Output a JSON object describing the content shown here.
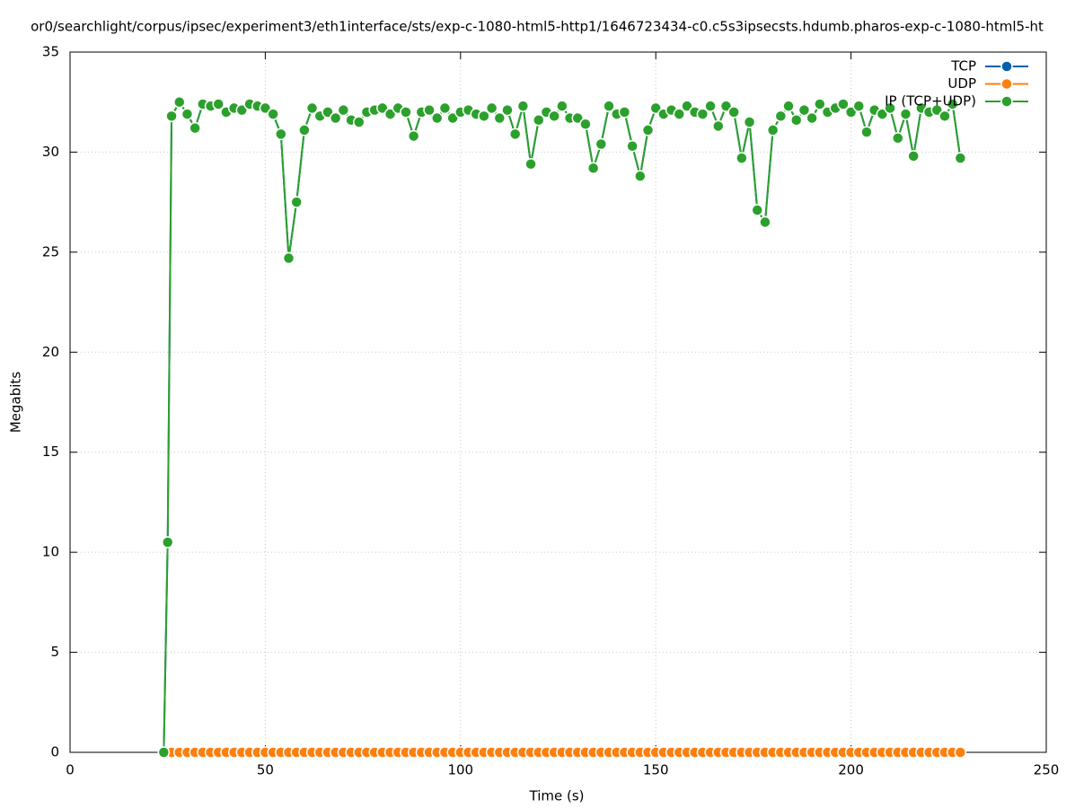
{
  "chart_data": {
    "type": "line",
    "title": "or0/searchlight/corpus/ipsec/experiment3/eth1interface/sts/exp-c-1080-html5-http1/1646723434-c0.c5s3ipsecsts.hdumb.pharos-exp-c-1080-html5-ht",
    "x_label": "Time (s)",
    "y_label": "Megabits",
    "x": [
      24,
      25,
      26,
      28,
      30,
      32,
      34,
      36,
      38,
      40,
      42,
      44,
      46,
      48,
      50,
      52,
      54,
      56,
      58,
      60,
      62,
      64,
      66,
      68,
      70,
      72,
      74,
      76,
      78,
      80,
      82,
      84,
      86,
      88,
      90,
      92,
      94,
      96,
      98,
      100,
      102,
      104,
      106,
      108,
      110,
      112,
      114,
      116,
      118,
      120,
      122,
      124,
      126,
      128,
      130,
      132,
      134,
      136,
      138,
      140,
      142,
      144,
      146,
      148,
      150,
      152,
      154,
      156,
      158,
      160,
      162,
      164,
      166,
      168,
      170,
      172,
      174,
      176,
      178,
      180,
      182,
      184,
      186,
      188,
      190,
      192,
      194,
      196,
      198,
      200,
      202,
      204,
      206,
      208,
      210,
      212,
      214,
      216,
      218,
      220,
      222,
      224,
      226,
      228
    ],
    "series": [
      {
        "name": "TCP",
        "color": "#0060ad",
        "values": [
          0,
          10.5,
          31.8,
          32.5,
          31.9,
          31.2,
          32.4,
          32.3,
          32.4,
          32.0,
          32.2,
          32.1,
          32.4,
          32.3,
          32.2,
          31.9,
          30.9,
          24.7,
          27.5,
          31.1,
          32.2,
          31.8,
          32.0,
          31.7,
          32.1,
          31.6,
          31.5,
          32.0,
          32.1,
          32.2,
          31.9,
          32.2,
          32.0,
          30.8,
          32.0,
          32.1,
          31.7,
          32.2,
          31.7,
          32.0,
          32.1,
          31.9,
          31.8,
          32.2,
          31.7,
          32.1,
          30.9,
          32.3,
          29.4,
          31.6,
          32.0,
          31.8,
          32.3,
          31.7,
          31.7,
          31.4,
          29.2,
          30.4,
          32.3,
          31.9,
          32.0,
          30.3,
          28.8,
          31.1,
          32.2,
          31.9,
          32.1,
          31.9,
          32.3,
          32.0,
          31.9,
          32.3,
          31.3,
          32.3,
          32.0,
          29.7,
          31.5,
          27.1,
          26.5,
          31.1,
          31.8,
          32.3,
          31.6,
          32.1,
          31.7,
          32.4,
          32.0,
          32.2,
          32.4,
          32.0,
          32.3,
          31.0,
          32.1,
          31.9,
          32.2,
          30.7,
          31.9,
          29.8,
          32.2,
          32.0,
          32.1,
          31.8,
          32.4,
          29.7
        ]
      },
      {
        "name": "UDP",
        "color": "#ff7f0e",
        "values": [
          0,
          0,
          0,
          0,
          0,
          0,
          0,
          0,
          0,
          0,
          0,
          0,
          0,
          0,
          0,
          0,
          0,
          0,
          0,
          0,
          0,
          0,
          0,
          0,
          0,
          0,
          0,
          0,
          0,
          0,
          0,
          0,
          0,
          0,
          0,
          0,
          0,
          0,
          0,
          0,
          0,
          0,
          0,
          0,
          0,
          0,
          0,
          0,
          0,
          0,
          0,
          0,
          0,
          0,
          0,
          0,
          0,
          0,
          0,
          0,
          0,
          0,
          0,
          0,
          0,
          0,
          0,
          0,
          0,
          0,
          0,
          0,
          0,
          0,
          0,
          0,
          0,
          0,
          0,
          0,
          0,
          0,
          0,
          0,
          0,
          0,
          0,
          0,
          0,
          0,
          0,
          0,
          0,
          0,
          0,
          0,
          0,
          0,
          0,
          0,
          0,
          0,
          0,
          0
        ]
      },
      {
        "name": "IP (TCP+UDP)",
        "color": "#2ca02c",
        "values": [
          0,
          10.5,
          31.8,
          32.5,
          31.9,
          31.2,
          32.4,
          32.3,
          32.4,
          32.0,
          32.2,
          32.1,
          32.4,
          32.3,
          32.2,
          31.9,
          30.9,
          24.7,
          27.5,
          31.1,
          32.2,
          31.8,
          32.0,
          31.7,
          32.1,
          31.6,
          31.5,
          32.0,
          32.1,
          32.2,
          31.9,
          32.2,
          32.0,
          30.8,
          32.0,
          32.1,
          31.7,
          32.2,
          31.7,
          32.0,
          32.1,
          31.9,
          31.8,
          32.2,
          31.7,
          32.1,
          30.9,
          32.3,
          29.4,
          31.6,
          32.0,
          31.8,
          32.3,
          31.7,
          31.7,
          31.4,
          29.2,
          30.4,
          32.3,
          31.9,
          32.0,
          30.3,
          28.8,
          31.1,
          32.2,
          31.9,
          32.1,
          31.9,
          32.3,
          32.0,
          31.9,
          32.3,
          31.3,
          32.3,
          32.0,
          29.7,
          31.5,
          27.1,
          26.5,
          31.1,
          31.8,
          32.3,
          31.6,
          32.1,
          31.7,
          32.4,
          32.0,
          32.2,
          32.4,
          32.0,
          32.3,
          31.0,
          32.1,
          31.9,
          32.2,
          30.7,
          31.9,
          29.8,
          32.2,
          32.0,
          32.1,
          31.8,
          32.4,
          29.7
        ]
      }
    ],
    "xlim": [
      0,
      250
    ],
    "xticks": [
      0,
      50,
      100,
      150,
      200,
      250
    ],
    "ylim": [
      0,
      35
    ],
    "yticks": [
      0,
      5,
      10,
      15,
      20,
      25,
      30,
      35
    ],
    "grid": true,
    "legend": "top-right"
  }
}
